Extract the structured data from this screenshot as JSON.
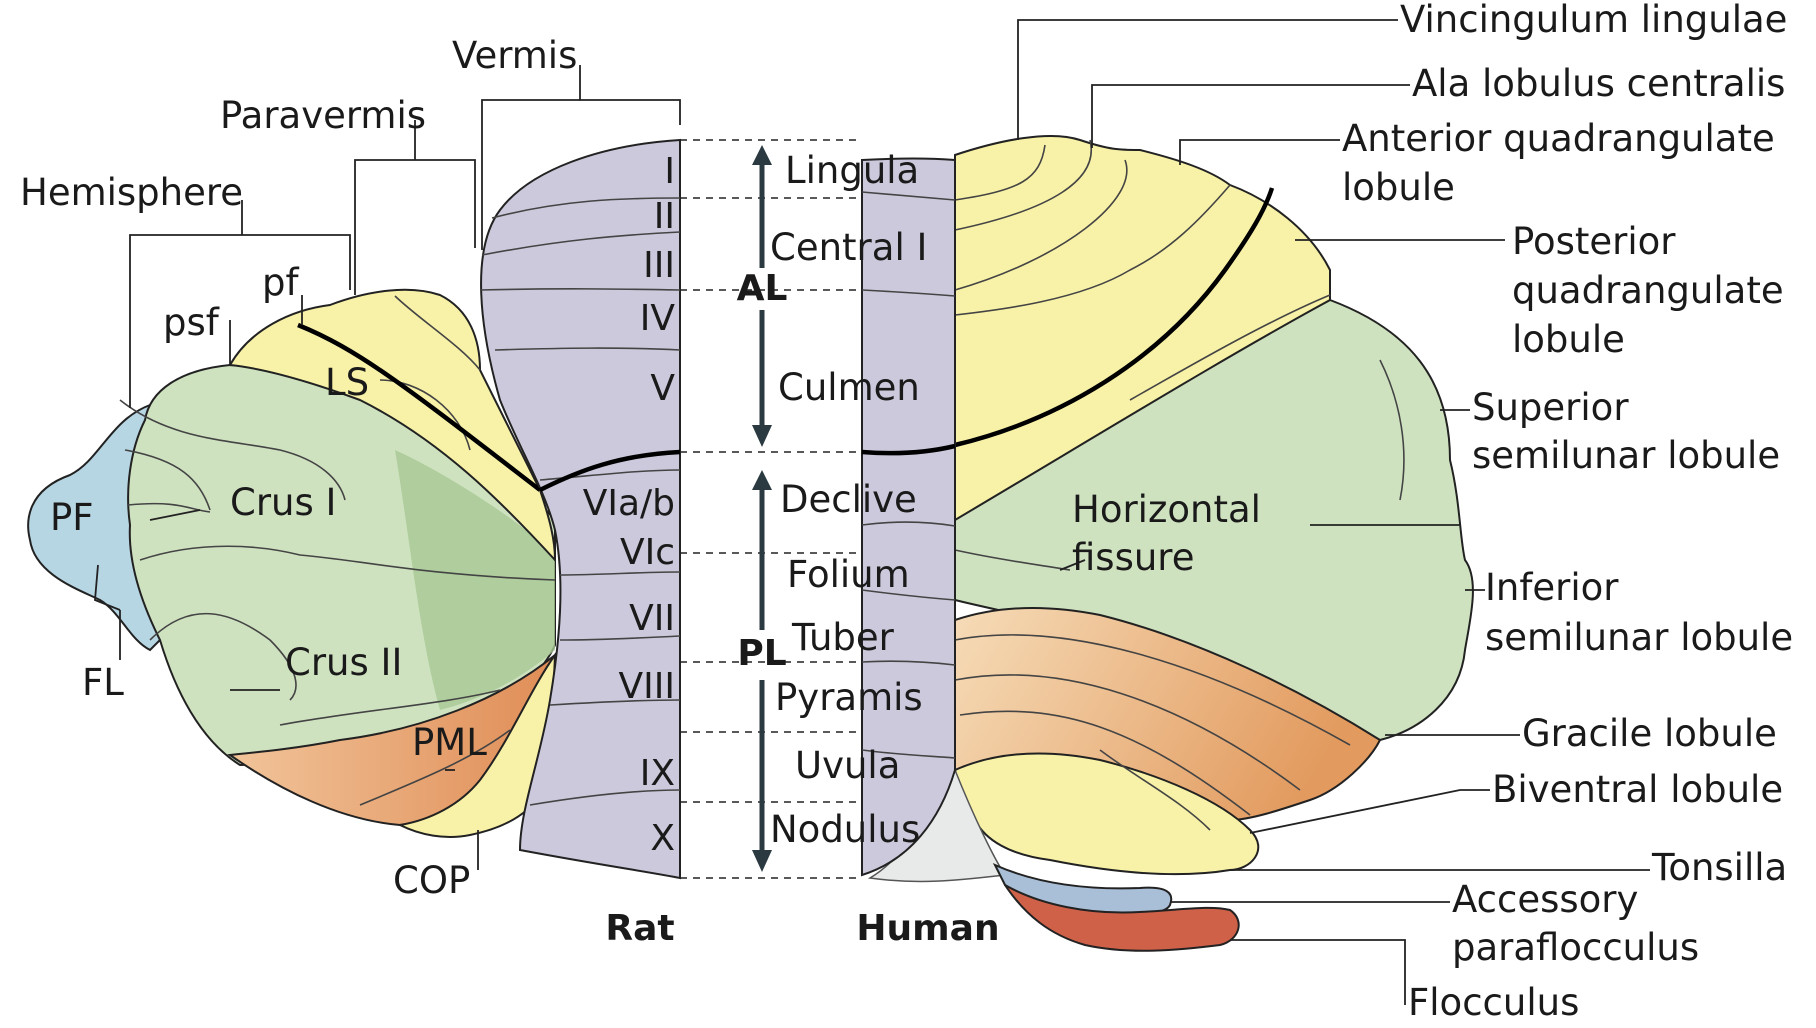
{
  "colors": {
    "vermis": "#cdc9dc",
    "yellow": "#f8f2a8",
    "green": "#cfe2c0",
    "green_dark": "#a8c993",
    "blue": "#b7d6e3",
    "orange_light": "#f3d2a8",
    "orange": "#e6a06a",
    "gray": "#e8eaea",
    "acc_blue": "#a9bfd8",
    "flocculus_red": "#cf6149"
  },
  "rat_labels": {
    "vermis": "Vermis",
    "paravermis": "Paravermis",
    "hemisphere": "Hemisphere",
    "pf_small": "pf",
    "psf": "psf",
    "LS": "LS",
    "PF": "PF",
    "crus1": "Crus I",
    "crus2": "Crus II",
    "FL": "FL",
    "PML": "PML",
    "COP": "COP"
  },
  "vermis_lobules": [
    "I",
    "II",
    "III",
    "IV",
    "V",
    "VIa/b",
    "VIc",
    "VII",
    "VIII",
    "IX",
    "X"
  ],
  "middle_labels": [
    "Lingula",
    "Central I",
    "Culmen",
    "Declive",
    "Folium",
    "Tuber",
    "Pyramis",
    "Uvula",
    "Nodulus"
  ],
  "lobes": {
    "anterior": "AL",
    "posterior": "PL"
  },
  "species": {
    "rat": "Rat",
    "human": "Human"
  },
  "human_labels": {
    "vincingulum": "Vincingulum lingulae",
    "ala": "Ala lobulus centralis",
    "anterior_quad_1": "Anterior quadrangulate",
    "anterior_quad_2": "lobule",
    "posterior_quad_1": "Posterior",
    "posterior_quad_2": "quadrangulate",
    "posterior_quad_3": "lobule",
    "superior_semi_1": "Superior",
    "superior_semi_2": "semilunar lobule",
    "horizontal_1": "Horizontal",
    "horizontal_2": "fissure",
    "inferior_semi_1": "Inferior",
    "inferior_semi_2": "semilunar lobule",
    "gracile": "Gracile lobule",
    "biventral": "Biventral lobule",
    "tonsilla": "Tonsilla",
    "accessory_1": "Accessory",
    "accessory_2": "paraflocculus",
    "flocculus": "Flocculus"
  }
}
